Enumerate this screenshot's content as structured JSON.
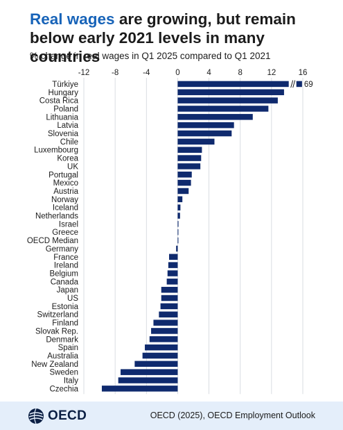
{
  "title": {
    "accent": "Real wages",
    "rest": " are growing, but remain below early 2021 levels in many countries"
  },
  "subtitle": "% change in real wages in Q1 2025 compared to Q1 2021",
  "footer": {
    "logo_text": "OECD",
    "source": "OECD (2025), OECD Employment Outlook"
  },
  "colors": {
    "bar": "#0f2a6e",
    "accent": "#1763b8",
    "footer_bg": "#e4eefa"
  },
  "chart_data": {
    "type": "bar",
    "orientation": "horizontal",
    "xlim": [
      -12,
      16
    ],
    "xticks": [
      -12,
      -8,
      -4,
      0,
      4,
      8,
      12,
      16
    ],
    "grid": true,
    "axis_break": {
      "category": "Türkiye",
      "label": "69"
    },
    "categories": [
      "Türkiye",
      "Hungary",
      "Costa Rica",
      "Poland",
      "Lithuania",
      "Latvia",
      "Slovenia",
      "Chile",
      "Luxembourg",
      "Korea",
      "UK",
      "Portugal",
      "Mexico",
      "Austria",
      "Norway",
      "Iceland",
      "Netherlands",
      "Israel",
      "Greece",
      "OECD Median",
      "Germany",
      "France",
      "Ireland",
      "Belgium",
      "Canada",
      "Japan",
      "US",
      "Estonia",
      "Switzerland",
      "Finland",
      "Slovak Rep.",
      "Denmark",
      "Spain",
      "Australia",
      "New Zealand",
      "Sweden",
      "Italy",
      "Czechia"
    ],
    "values": [
      69,
      13.6,
      12.8,
      11.6,
      9.6,
      7.2,
      6.9,
      4.7,
      3.1,
      3.0,
      2.9,
      1.8,
      1.7,
      1.4,
      0.6,
      0.35,
      0.3,
      0.1,
      0.08,
      0.05,
      -0.2,
      -1.1,
      -1.2,
      -1.3,
      -1.4,
      -2.1,
      -2.1,
      -2.2,
      -2.4,
      -3.1,
      -3.4,
      -3.6,
      -4.2,
      -4.5,
      -5.5,
      -7.3,
      -7.6,
      -9.7
    ]
  }
}
